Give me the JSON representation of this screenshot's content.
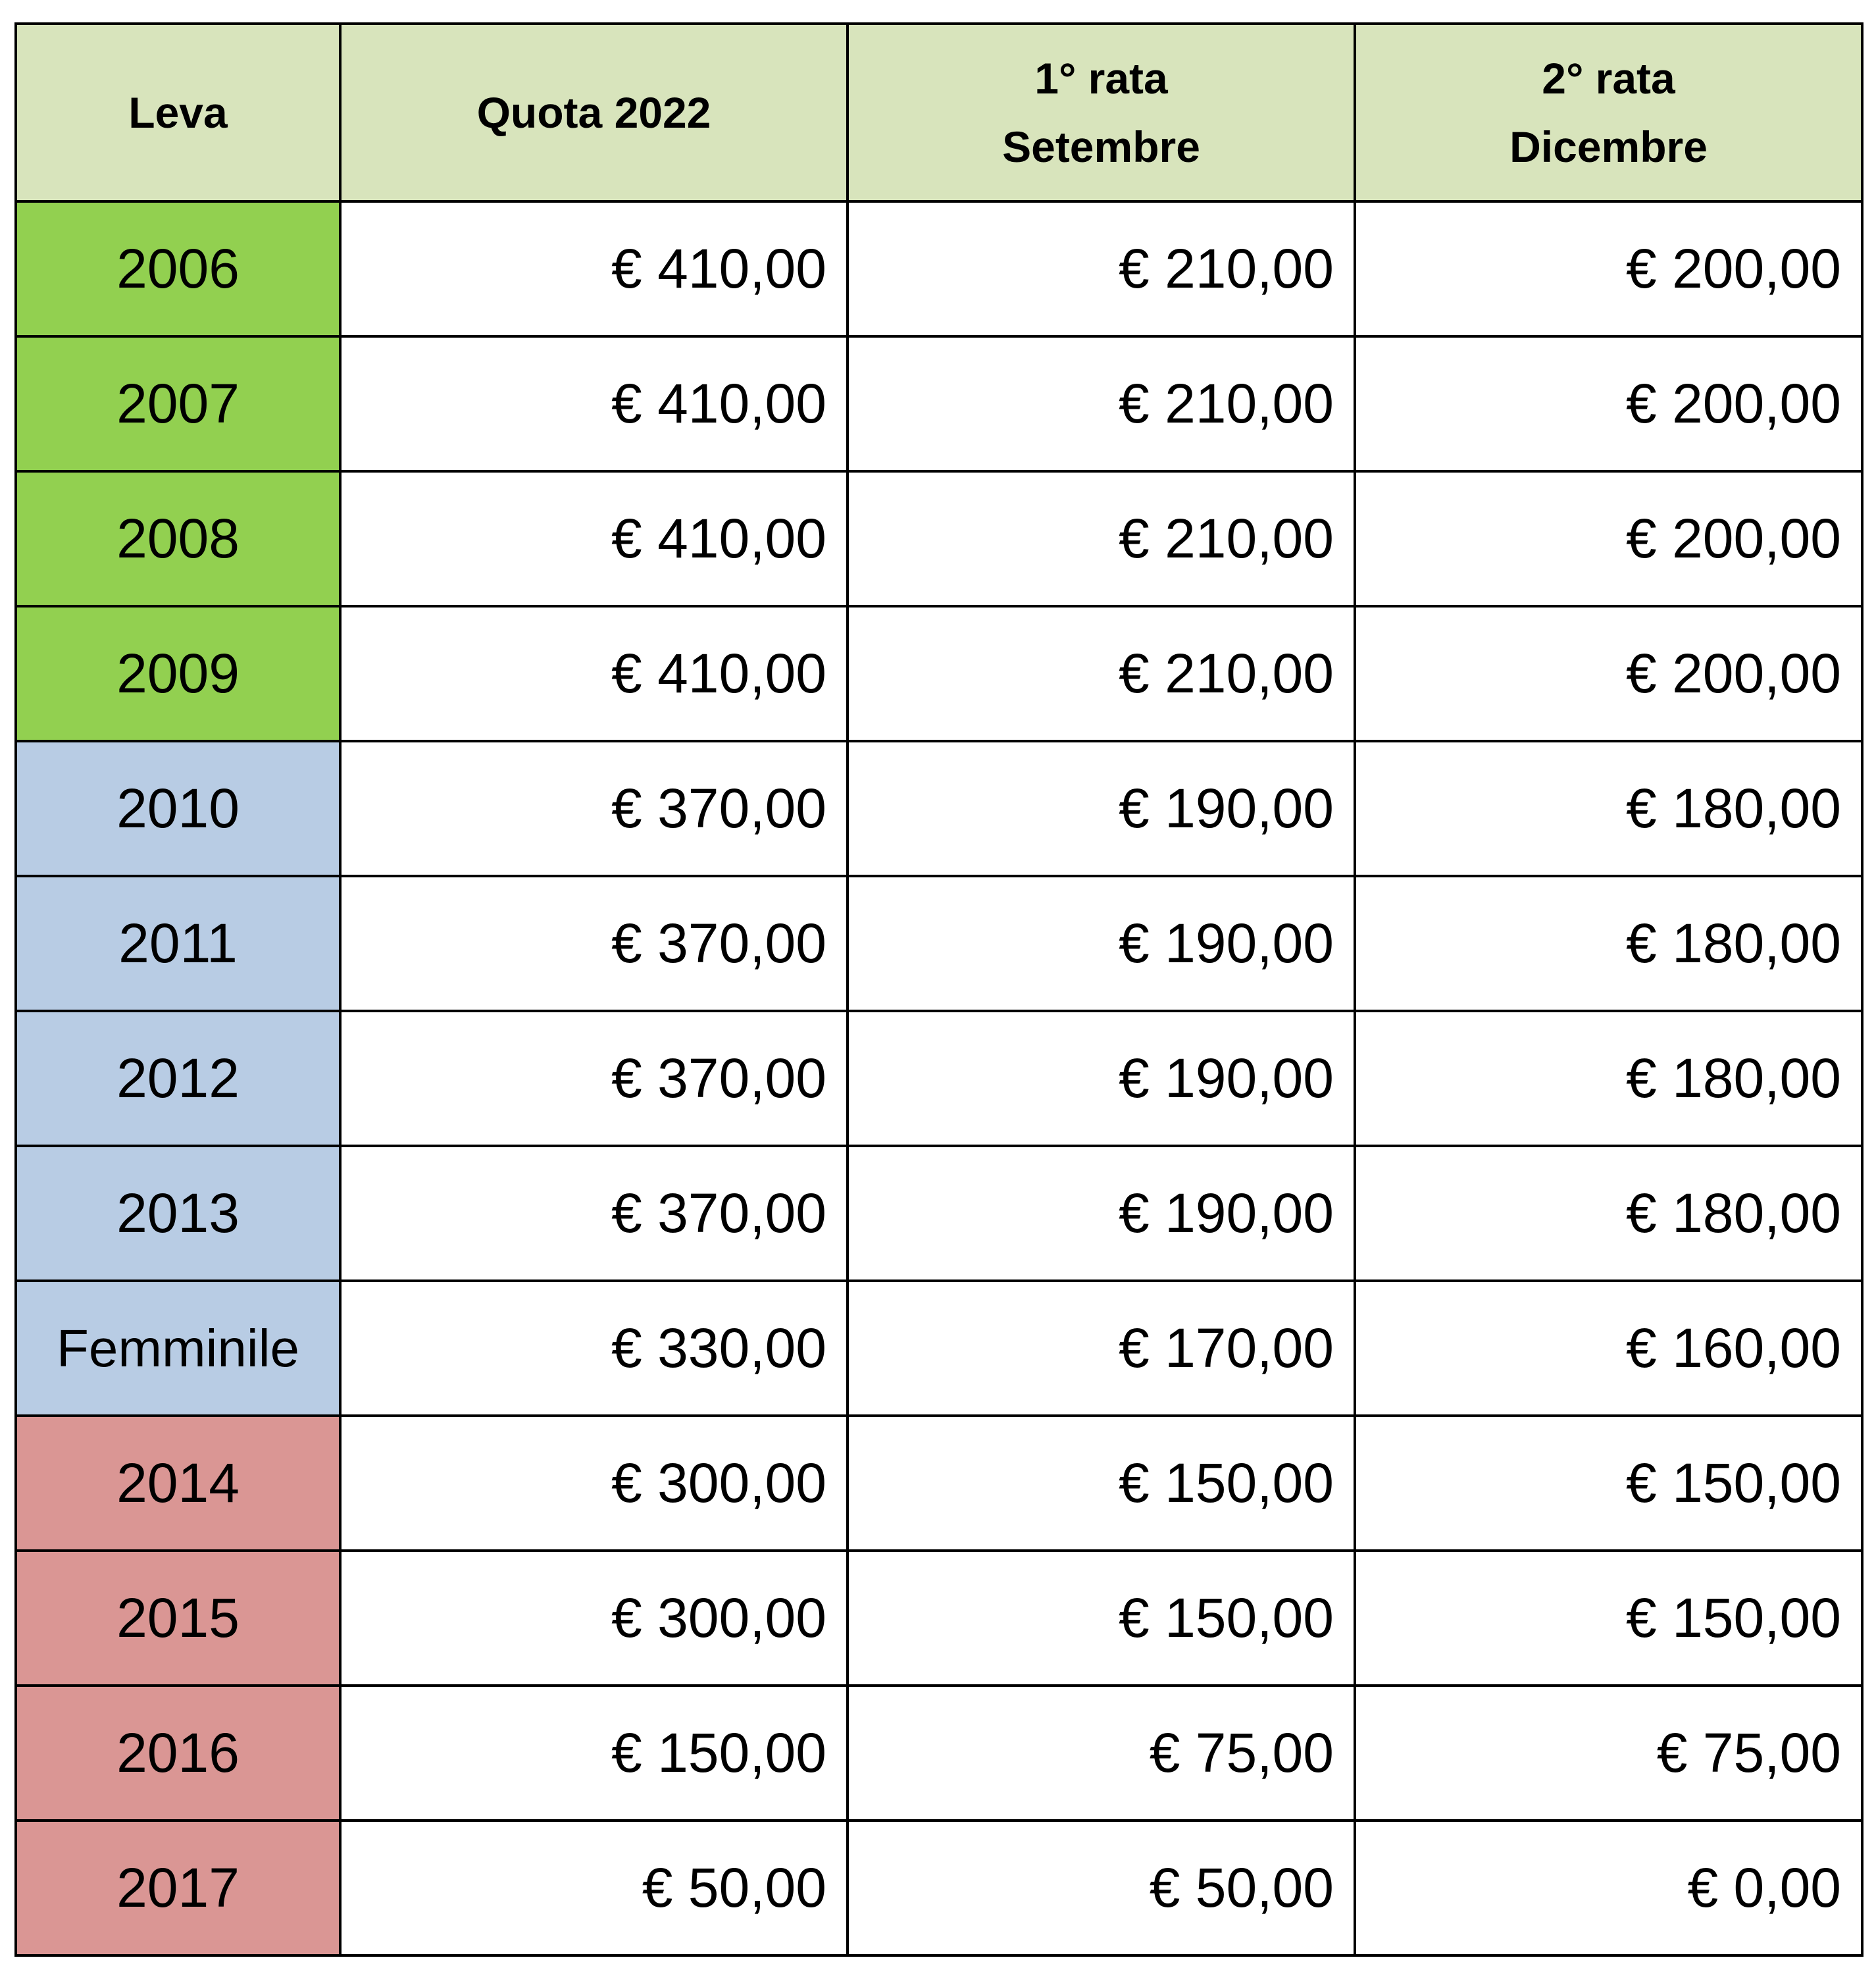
{
  "table": {
    "headers": {
      "leva": "Leva",
      "quota": "Quota 2022",
      "rata1_line1": "1° rata",
      "rata1_line2": "Setembre",
      "rata2_line1": "2° rata",
      "rata2_line2": "Dicembre"
    },
    "group_colors": {
      "green": "#92d050",
      "blue": "#b8cce4",
      "red": "#da9694",
      "header": "#d8e4bc"
    },
    "rows": [
      {
        "leva": "2006",
        "quota": "€ 410,00",
        "rata1": "€ 210,00",
        "rata2": "€ 200,00",
        "group": "green"
      },
      {
        "leva": "2007",
        "quota": "€ 410,00",
        "rata1": "€ 210,00",
        "rata2": "€ 200,00",
        "group": "green"
      },
      {
        "leva": "2008",
        "quota": "€ 410,00",
        "rata1": "€ 210,00",
        "rata2": "€ 200,00",
        "group": "green"
      },
      {
        "leva": "2009",
        "quota": "€ 410,00",
        "rata1": "€ 210,00",
        "rata2": "€ 200,00",
        "group": "green"
      },
      {
        "leva": "2010",
        "quota": "€ 370,00",
        "rata1": "€ 190,00",
        "rata2": "€ 180,00",
        "group": "blue"
      },
      {
        "leva": "2011",
        "quota": "€ 370,00",
        "rata1": "€ 190,00",
        "rata2": "€ 180,00",
        "group": "blue"
      },
      {
        "leva": "2012",
        "quota": "€ 370,00",
        "rata1": "€ 190,00",
        "rata2": "€ 180,00",
        "group": "blue"
      },
      {
        "leva": "2013",
        "quota": "€ 370,00",
        "rata1": "€ 190,00",
        "rata2": "€ 180,00",
        "group": "blue"
      },
      {
        "leva": "Femminile",
        "quota": "€ 330,00",
        "rata1": "€ 170,00",
        "rata2": "€ 160,00",
        "group": "blue"
      },
      {
        "leva": "2014",
        "quota": "€ 300,00",
        "rata1": "€ 150,00",
        "rata2": "€ 150,00",
        "group": "red"
      },
      {
        "leva": "2015",
        "quota": "€ 300,00",
        "rata1": "€ 150,00",
        "rata2": "€ 150,00",
        "group": "red"
      },
      {
        "leva": "2016",
        "quota": "€ 150,00",
        "rata1": "€ 75,00",
        "rata2": "€ 75,00",
        "group": "red"
      },
      {
        "leva": "2017",
        "quota": "€ 50,00",
        "rata1": "€ 50,00",
        "rata2": "€ 0,00",
        "group": "red"
      }
    ]
  }
}
